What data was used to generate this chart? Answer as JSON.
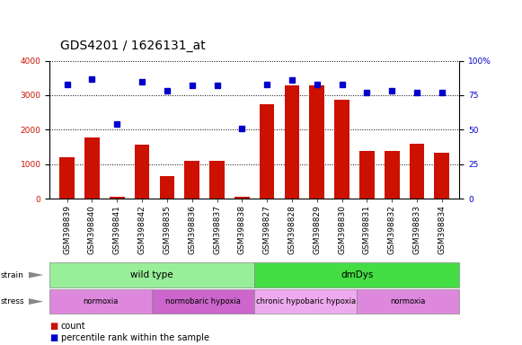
{
  "title": "GDS4201 / 1626131_at",
  "samples": [
    "GSM398839",
    "GSM398840",
    "GSM398841",
    "GSM398842",
    "GSM398835",
    "GSM398836",
    "GSM398837",
    "GSM398838",
    "GSM398827",
    "GSM398828",
    "GSM398829",
    "GSM398830",
    "GSM398831",
    "GSM398832",
    "GSM398833",
    "GSM398834"
  ],
  "counts": [
    1200,
    1780,
    60,
    1560,
    650,
    1090,
    1110,
    50,
    2730,
    3280,
    3280,
    2880,
    1380,
    1390,
    1590,
    1340
  ],
  "percentile_ranks": [
    83,
    87,
    54,
    85,
    78,
    82,
    82,
    51,
    83,
    86,
    83,
    83,
    77,
    78,
    77,
    77
  ],
  "bar_color": "#cc1100",
  "dot_color": "#0000cc",
  "ylim_left": [
    0,
    4000
  ],
  "ylim_right": [
    0,
    100
  ],
  "yticks_left": [
    0,
    1000,
    2000,
    3000,
    4000
  ],
  "yticks_right": [
    0,
    25,
    50,
    75,
    100
  ],
  "strain_groups": [
    {
      "label": "wild type",
      "start": 0,
      "end": 8,
      "color": "#99ee99"
    },
    {
      "label": "dmDys",
      "start": 8,
      "end": 16,
      "color": "#44dd44"
    }
  ],
  "stress_groups": [
    {
      "label": "normoxia",
      "start": 0,
      "end": 4,
      "color": "#dd88dd"
    },
    {
      "label": "normobaric hypoxia",
      "start": 4,
      "end": 8,
      "color": "#cc66cc"
    },
    {
      "label": "chronic hypobaric hypoxia",
      "start": 8,
      "end": 12,
      "color": "#eeaaee"
    },
    {
      "label": "normoxia",
      "start": 12,
      "end": 16,
      "color": "#dd88dd"
    }
  ],
  "legend_count_label": "count",
  "legend_pct_label": "percentile rank within the sample",
  "bar_color_legend": "#cc1100",
  "dot_color_legend": "#0000cc",
  "bar_width": 0.6,
  "background_color": "#ffffff",
  "title_fontsize": 10,
  "tick_fontsize": 6.5,
  "band_label_fontsize": 6.5,
  "strain_fontsize": 7.5,
  "stress_fontsize": 6,
  "legend_fontsize": 7
}
